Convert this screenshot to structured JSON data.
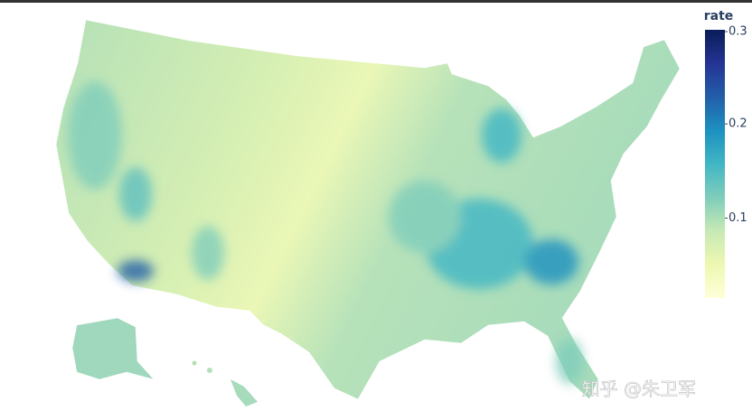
{
  "chart_data": {
    "type": "choropleth",
    "colorbar": {
      "title": "rate",
      "range": [
        0.015,
        0.3
      ],
      "ticks": [
        0.1,
        0.2,
        0.3
      ],
      "colorscale": [
        "#ffffd9",
        "#edf8b1",
        "#c7e9b4",
        "#7fcdbb",
        "#41b6c4",
        "#1d91c0",
        "#225ea8",
        "#253494",
        "#081d58"
      ]
    },
    "watermark": "知乎 @朱卫军"
  }
}
